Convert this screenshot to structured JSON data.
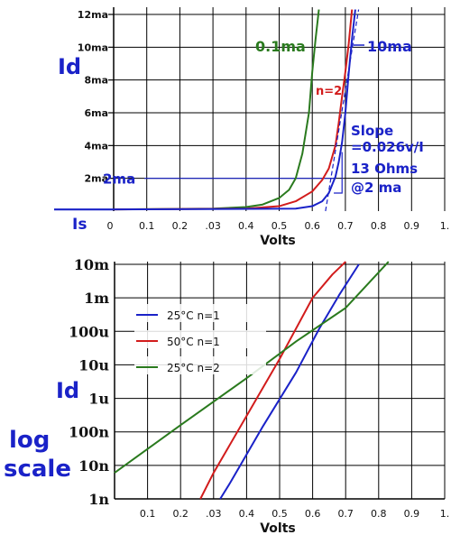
{
  "chart_data": [
    {
      "type": "line",
      "xlabel": "Volts",
      "ylabel": "Id",
      "x_ticks": [
        "0",
        "0.1",
        "0.2",
        ".03",
        "0.4",
        "0.5",
        "0.6",
        "0.7",
        "0.8",
        "0.9",
        "1."
      ],
      "y_ticks": [
        "2ma",
        "4ma",
        "6ma",
        "8ma",
        "10ma",
        "12ma"
      ],
      "xlim": [
        0,
        1.0
      ],
      "ylim": [
        0,
        12
      ],
      "y_unit": "ma",
      "grid": true,
      "is_label": "Is",
      "series": [
        {
          "name": "0.1ma",
          "color": "#2a7a1e",
          "x": [
            0.0,
            0.3,
            0.4,
            0.45,
            0.5,
            0.53,
            0.55,
            0.57,
            0.59,
            0.6,
            0.61,
            0.62
          ],
          "y": [
            0.1,
            0.15,
            0.25,
            0.4,
            0.8,
            1.3,
            2.0,
            3.5,
            6.0,
            8.5,
            10.5,
            12.3
          ]
        },
        {
          "name": "n=2",
          "color": "#d21c1c",
          "x": [
            0.0,
            0.4,
            0.5,
            0.55,
            0.6,
            0.63,
            0.65,
            0.67,
            0.68,
            0.69,
            0.7,
            0.71,
            0.72
          ],
          "y": [
            0.1,
            0.15,
            0.3,
            0.6,
            1.2,
            1.9,
            2.6,
            4.0,
            5.4,
            7.0,
            8.5,
            10.2,
            12.3
          ]
        },
        {
          "name": "10ma",
          "color": "#1a22c8",
          "x": [
            0.0,
            0.55,
            0.6,
            0.63,
            0.65,
            0.66,
            0.67,
            0.68,
            0.69,
            0.7,
            0.71,
            0.72,
            0.73
          ],
          "y": [
            0.1,
            0.15,
            0.3,
            0.6,
            1.1,
            1.6,
            2.1,
            3.0,
            4.2,
            6.0,
            8.4,
            10.5,
            12.3
          ]
        },
        {
          "name": "Slope",
          "color": "#1a22c8",
          "dashed": true,
          "x": [
            0.64,
            0.74
          ],
          "y": [
            0.0,
            12.3
          ]
        }
      ],
      "reference_line": {
        "label": "2ma",
        "y": 2.0,
        "x_end": 0.67
      },
      "annotations": [
        "Slope",
        "=0.026v/I",
        "13 Ohms",
        "@2 ma"
      ]
    },
    {
      "type": "line",
      "xlabel": "Volts",
      "ylabel": "Id",
      "side_label": [
        "log",
        "scale"
      ],
      "x_ticks": [
        "0.1",
        "0.2",
        ".03",
        "0.4",
        "0.5",
        "0.6",
        "0.7",
        "0.8",
        "0.9",
        "1."
      ],
      "y_ticks": [
        "1n",
        "10n",
        "100n",
        "1u",
        "10u",
        "100u",
        "1m",
        "10m"
      ],
      "xlim": [
        0,
        1.0
      ],
      "ylim_log10": [
        -9,
        -2
      ],
      "y_scale": "log",
      "grid": true,
      "legend_position": "top-left",
      "series": [
        {
          "name": "25°C n=1",
          "color": "#1a22c8",
          "x": [
            0.32,
            0.35,
            0.45,
            0.55,
            0.62,
            0.68,
            0.74
          ],
          "y": [
            1e-09,
            3e-09,
            1.5e-07,
            6e-06,
            0.00012,
            0.0012,
            0.01
          ]
        },
        {
          "name": "50°C n=1",
          "color": "#d21c1c",
          "x": [
            0.26,
            0.3,
            0.4,
            0.5,
            0.6,
            0.66,
            0.7
          ],
          "y": [
            1e-09,
            6e-09,
            3e-07,
            1.5e-05,
            0.001,
            0.005,
            0.012
          ]
        },
        {
          "name": "25°C n=2",
          "color": "#2a7a1e",
          "x": [
            0.0,
            0.2,
            0.4,
            0.55,
            0.7,
            0.83
          ],
          "y": [
            6e-09,
            1.6e-07,
            4e-06,
            5e-05,
            0.0005,
            0.012
          ]
        }
      ]
    }
  ]
}
